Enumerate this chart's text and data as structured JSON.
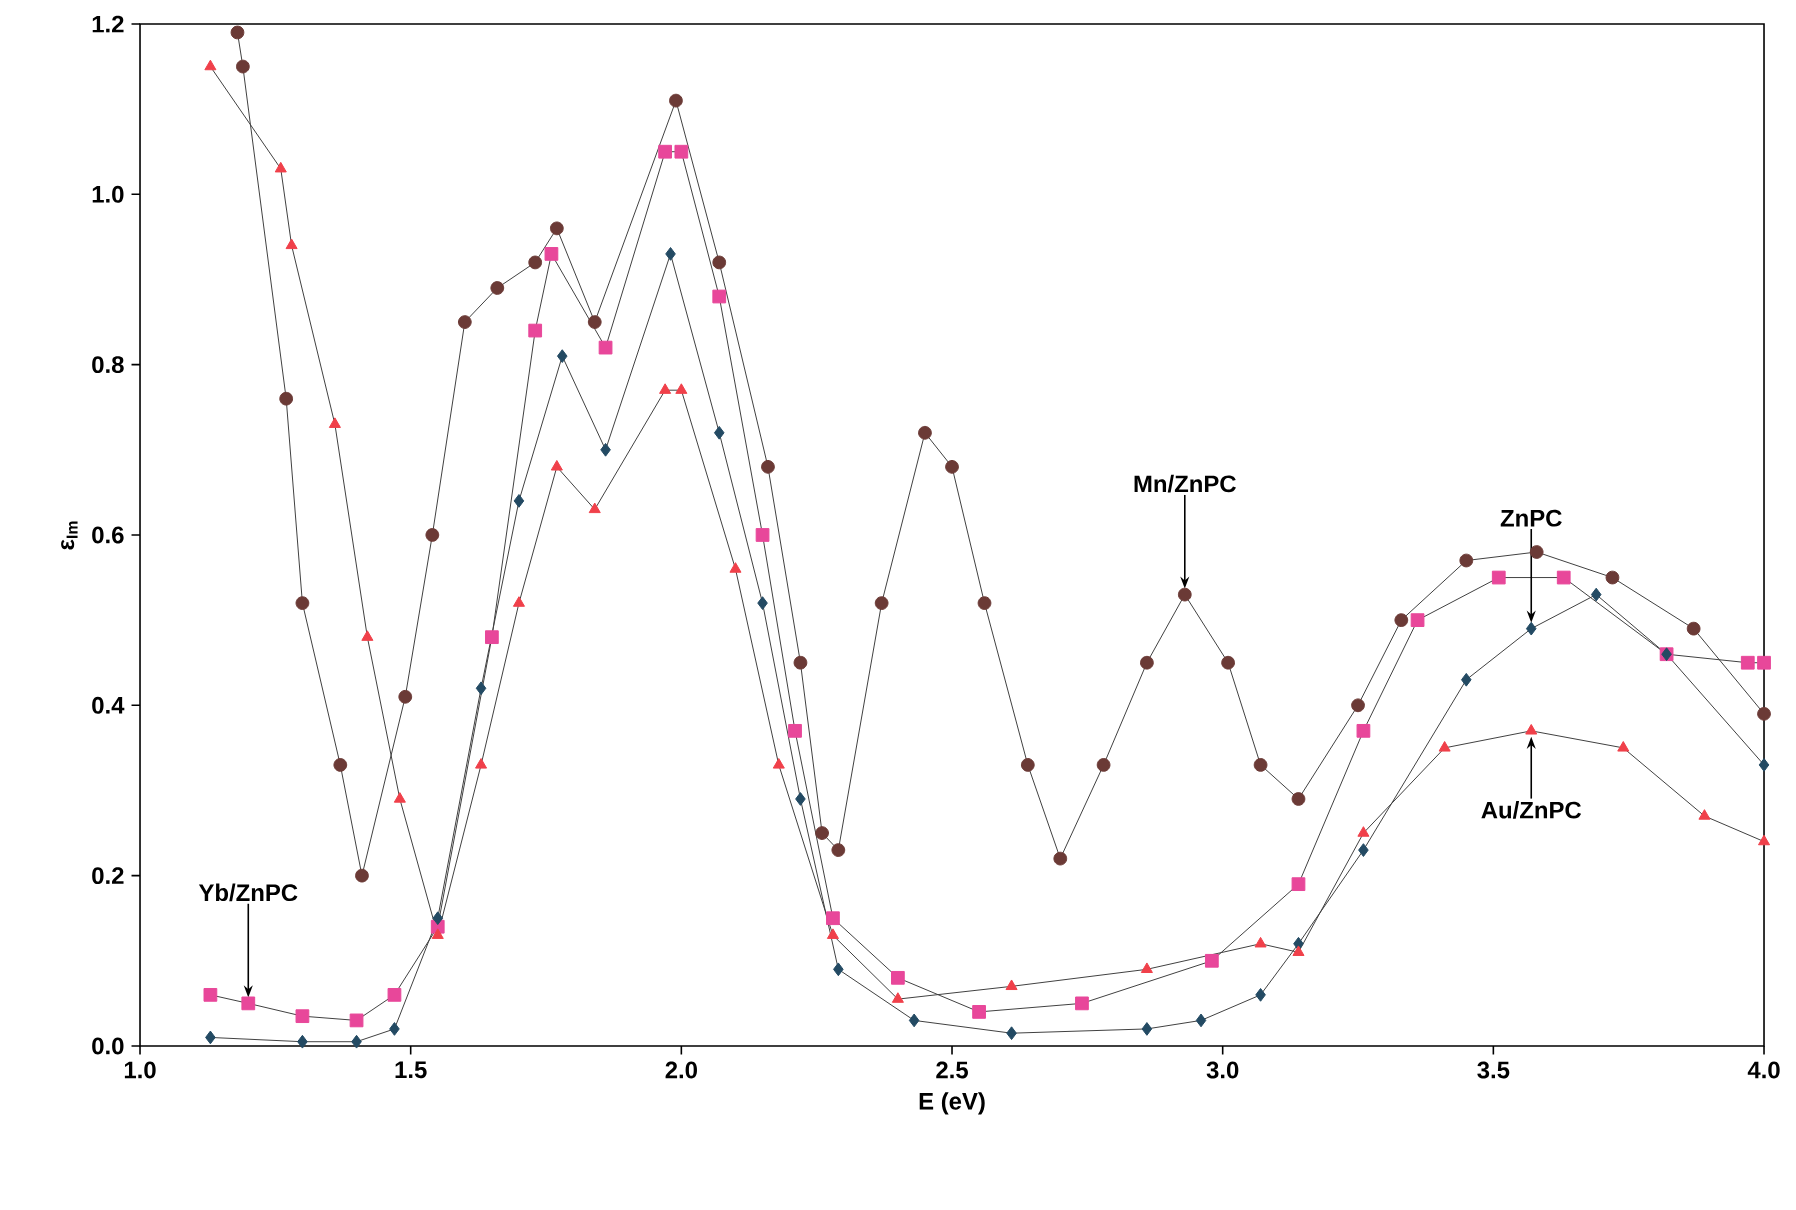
{
  "chart_data": {
    "type": "line",
    "xlabel": "E (eV)",
    "ylabel": "ε$_{Im}$",
    "xlim": [
      1.0,
      4.0
    ],
    "ylim": [
      0.0,
      1.2
    ],
    "xticks": [
      {
        "value": 1.0,
        "label": "1.0"
      },
      {
        "value": 1.5,
        "label": "1.5"
      },
      {
        "value": 2.0,
        "label": "2.0"
      },
      {
        "value": 2.5,
        "label": "2.5"
      },
      {
        "value": 3.0,
        "label": "3.0"
      },
      {
        "value": 3.5,
        "label": "3.5"
      },
      {
        "value": 4.0,
        "label": "4.0"
      }
    ],
    "yticks": [
      {
        "value": 0.0,
        "label": "0.0"
      },
      {
        "value": 0.2,
        "label": "0.2"
      },
      {
        "value": 0.4,
        "label": "0.4"
      },
      {
        "value": 0.6,
        "label": "0.6"
      },
      {
        "value": 0.8,
        "label": "0.8"
      },
      {
        "value": 1.0,
        "label": "1.0"
      },
      {
        "value": 1.2,
        "label": "1.2"
      }
    ],
    "grid": false,
    "series": [
      {
        "color": "#6b3a36",
        "marker": "circle",
        "x": [
          1.18,
          1.19,
          1.27,
          1.3,
          1.37,
          1.41,
          1.49,
          1.54,
          1.6,
          1.66,
          1.73,
          1.77,
          1.84,
          1.99,
          2.07,
          2.16,
          2.22,
          2.26,
          2.29,
          2.37,
          2.45,
          2.5,
          2.56,
          2.64,
          2.7,
          2.78,
          2.86,
          2.93,
          3.01,
          3.07,
          3.14,
          3.25,
          3.33,
          3.45,
          3.58,
          3.72,
          3.87,
          4.0
        ],
        "values": [
          1.19,
          1.15,
          0.76,
          0.52,
          0.33,
          0.2,
          0.41,
          0.6,
          0.85,
          0.89,
          0.92,
          0.96,
          0.85,
          1.11,
          0.92,
          0.68,
          0.45,
          0.25,
          0.23,
          0.52,
          0.72,
          0.68,
          0.52,
          0.33,
          0.22,
          0.33,
          0.45,
          0.53,
          0.45,
          0.33,
          0.29,
          0.4,
          0.5,
          0.57,
          0.58,
          0.55,
          0.49,
          0.39
        ]
      },
      {
        "color": "#e8479a",
        "marker": "square",
        "x": [
          1.13,
          1.2,
          1.3,
          1.4,
          1.47,
          1.55,
          1.65,
          1.73,
          1.76,
          1.86,
          1.97,
          2.0,
          2.07,
          2.15,
          2.21,
          2.28,
          2.4,
          2.55,
          2.74,
          2.98,
          3.14,
          3.26,
          3.36,
          3.51,
          3.63,
          3.82,
          3.97,
          4.0
        ],
        "values": [
          0.06,
          0.05,
          0.035,
          0.03,
          0.06,
          0.14,
          0.48,
          0.84,
          0.93,
          0.82,
          1.05,
          1.05,
          0.88,
          0.6,
          0.37,
          0.15,
          0.08,
          0.04,
          0.05,
          0.1,
          0.19,
          0.37,
          0.5,
          0.55,
          0.55,
          0.46,
          0.45,
          0.45
        ]
      },
      {
        "color": "#234a63",
        "marker": "diamond",
        "x": [
          1.13,
          1.3,
          1.4,
          1.47,
          1.55,
          1.63,
          1.7,
          1.78,
          1.86,
          1.98,
          2.07,
          2.15,
          2.22,
          2.29,
          2.43,
          2.61,
          2.86,
          2.96,
          3.07,
          3.14,
          3.26,
          3.45,
          3.57,
          3.69,
          3.82,
          4.0
        ],
        "values": [
          0.01,
          0.005,
          0.005,
          0.02,
          0.15,
          0.42,
          0.64,
          0.81,
          0.7,
          0.93,
          0.72,
          0.52,
          0.29,
          0.09,
          0.03,
          0.015,
          0.02,
          0.03,
          0.06,
          0.12,
          0.23,
          0.43,
          0.49,
          0.53,
          0.46,
          0.33
        ]
      },
      {
        "color": "#f0404a",
        "marker": "triangle",
        "x": [
          1.13,
          1.26,
          1.28,
          1.36,
          1.42,
          1.48,
          1.55,
          1.63,
          1.7,
          1.77,
          1.84,
          1.97,
          2.0,
          2.1,
          2.18,
          2.28,
          2.4,
          2.61,
          2.86,
          3.07,
          3.14,
          3.26,
          3.41,
          3.57,
          3.74,
          3.89,
          4.0
        ],
        "values": [
          1.15,
          1.03,
          0.94,
          0.73,
          0.48,
          0.29,
          0.13,
          0.33,
          0.52,
          0.68,
          0.63,
          0.77,
          0.77,
          0.56,
          0.33,
          0.13,
          0.055,
          0.07,
          0.09,
          0.12,
          0.11,
          0.25,
          0.35,
          0.37,
          0.35,
          0.27,
          0.24
        ]
      }
    ],
    "annotations": [
      {
        "text": "Yb/ZnPC",
        "x": 1.2,
        "y": 0.05
      },
      {
        "text": "Mn/ZnPC",
        "x": 2.93,
        "y": 0.53
      },
      {
        "text": "ZnPC",
        "x": 3.57,
        "y": 0.49
      },
      {
        "text": "Au/ZnPC",
        "x": 3.57,
        "y": 0.37
      }
    ]
  }
}
